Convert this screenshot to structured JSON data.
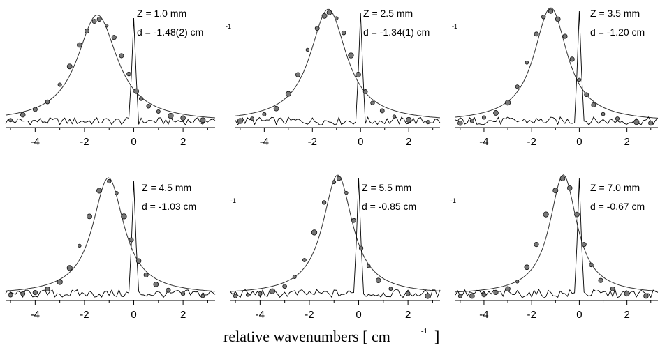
{
  "figure": {
    "xlabel": "relative wavenumbers [ cm",
    "xlabel_exponent": "-1",
    "xlabel_close": "]"
  },
  "chart_data": [
    {
      "type": "scatter",
      "z_label": "Z = 1.0 mm",
      "d_label": "d = -1.48(2) cm",
      "d_exponent": "-1",
      "peak": -1.48,
      "width": 1.05,
      "xlim": [
        -5.2,
        3.3
      ],
      "xticks": [
        -4,
        -2,
        0,
        2
      ],
      "series": [
        {
          "values": [
            [
              -5.0,
              0.05
            ],
            [
              -4.5,
              0.1
            ],
            [
              -4.0,
              0.15
            ],
            [
              -3.5,
              0.22
            ],
            [
              -3.0,
              0.38
            ],
            [
              -2.6,
              0.55
            ],
            [
              -2.2,
              0.75
            ],
            [
              -1.9,
              0.88
            ],
            [
              -1.6,
              0.97
            ],
            [
              -1.4,
              0.99
            ],
            [
              -1.1,
              0.93
            ],
            [
              -0.8,
              0.82
            ],
            [
              -0.5,
              0.65
            ],
            [
              -0.2,
              0.48
            ],
            [
              0.1,
              0.32
            ],
            [
              0.3,
              0.25
            ],
            [
              0.6,
              0.18
            ],
            [
              1.0,
              0.13
            ],
            [
              1.5,
              0.09
            ],
            [
              2.0,
              0.07
            ],
            [
              2.8,
              0.05
            ]
          ]
        }
      ]
    },
    {
      "type": "scatter",
      "z_label": "Z = 2.5 mm",
      "d_label": "d = -1.34(1) cm",
      "d_exponent": "-1",
      "peak": -1.34,
      "width": 0.98,
      "xlim": [
        -5.2,
        3.3
      ],
      "xticks": [
        -4,
        -2,
        0,
        2
      ],
      "series": [
        {
          "values": [
            [
              -5.0,
              0.04
            ],
            [
              -4.5,
              0.06
            ],
            [
              -4.0,
              0.1
            ],
            [
              -3.5,
              0.15
            ],
            [
              -3.0,
              0.28
            ],
            [
              -2.6,
              0.45
            ],
            [
              -2.2,
              0.67
            ],
            [
              -1.8,
              0.86
            ],
            [
              -1.5,
              0.97
            ],
            [
              -1.3,
              1.0
            ],
            [
              -1.0,
              0.95
            ],
            [
              -0.7,
              0.82
            ],
            [
              -0.4,
              0.62
            ],
            [
              -0.1,
              0.45
            ],
            [
              0.2,
              0.3
            ],
            [
              0.5,
              0.2
            ],
            [
              0.9,
              0.13
            ],
            [
              1.4,
              0.08
            ],
            [
              2.0,
              0.05
            ],
            [
              2.8,
              0.03
            ]
          ]
        }
      ]
    },
    {
      "type": "scatter",
      "z_label": "Z = 3.5 mm",
      "d_label": "d = -1.20 cm",
      "d_exponent": "-1",
      "peak": -1.2,
      "width": 0.9,
      "xlim": [
        -5.2,
        3.3
      ],
      "xticks": [
        -4,
        -2,
        0,
        2
      ],
      "series": [
        {
          "values": [
            [
              -5.0,
              0.02
            ],
            [
              -4.5,
              0.04
            ],
            [
              -4.0,
              0.07
            ],
            [
              -3.5,
              0.11
            ],
            [
              -3.0,
              0.2
            ],
            [
              -2.6,
              0.34
            ],
            [
              -2.2,
              0.55
            ],
            [
              -1.8,
              0.8
            ],
            [
              -1.5,
              0.95
            ],
            [
              -1.2,
              1.0
            ],
            [
              -0.9,
              0.93
            ],
            [
              -0.6,
              0.78
            ],
            [
              -0.3,
              0.58
            ],
            [
              0.0,
              0.4
            ],
            [
              0.3,
              0.27
            ],
            [
              0.6,
              0.18
            ],
            [
              1.0,
              0.1
            ],
            [
              1.6,
              0.06
            ],
            [
              2.4,
              0.03
            ],
            [
              3.0,
              0.02
            ]
          ]
        }
      ]
    },
    {
      "type": "scatter",
      "z_label": "Z = 4.5 mm",
      "d_label": "d = -1.03 cm",
      "d_exponent": "-1",
      "peak": -1.03,
      "width": 0.82,
      "xlim": [
        -5.2,
        3.3
      ],
      "xticks": [
        -4,
        -2,
        0,
        2
      ],
      "series": [
        {
          "values": [
            [
              -5.0,
              0.03
            ],
            [
              -4.5,
              0.04
            ],
            [
              -4.0,
              0.05
            ],
            [
              -3.5,
              0.08
            ],
            [
              -3.0,
              0.14
            ],
            [
              -2.6,
              0.26
            ],
            [
              -2.2,
              0.45
            ],
            [
              -1.8,
              0.7
            ],
            [
              -1.4,
              0.92
            ],
            [
              -1.0,
              1.0
            ],
            [
              -0.7,
              0.9
            ],
            [
              -0.4,
              0.7
            ],
            [
              -0.1,
              0.5
            ],
            [
              0.2,
              0.32
            ],
            [
              0.5,
              0.2
            ],
            [
              0.9,
              0.12
            ],
            [
              1.4,
              0.07
            ],
            [
              2.0,
              0.04
            ],
            [
              2.8,
              0.02
            ]
          ]
        }
      ]
    },
    {
      "type": "scatter",
      "z_label": "Z = 5.5 mm",
      "d_label": "d = -0.85 cm",
      "d_exponent": "-1",
      "peak": -0.85,
      "width": 0.78,
      "xlim": [
        -5.2,
        3.3
      ],
      "xticks": [
        -4,
        -2,
        0,
        2
      ],
      "series": [
        {
          "values": [
            [
              -5.0,
              0.02
            ],
            [
              -4.5,
              0.03
            ],
            [
              -4.0,
              0.04
            ],
            [
              -3.5,
              0.06
            ],
            [
              -3.0,
              0.1
            ],
            [
              -2.6,
              0.18
            ],
            [
              -2.2,
              0.32
            ],
            [
              -1.8,
              0.55
            ],
            [
              -1.4,
              0.8
            ],
            [
              -1.0,
              0.97
            ],
            [
              -0.8,
              1.0
            ],
            [
              -0.5,
              0.88
            ],
            [
              -0.2,
              0.65
            ],
            [
              0.1,
              0.42
            ],
            [
              0.4,
              0.27
            ],
            [
              0.8,
              0.15
            ],
            [
              1.3,
              0.08
            ],
            [
              2.0,
              0.04
            ],
            [
              2.8,
              0.02
            ]
          ]
        }
      ]
    },
    {
      "type": "scatter",
      "z_label": "Z = 7.0 mm",
      "d_label": "d = -0.67 cm",
      "d_exponent": "-1",
      "peak": -0.67,
      "width": 0.74,
      "xlim": [
        -5.2,
        3.3
      ],
      "xticks": [
        -4,
        -2,
        0,
        2
      ],
      "series": [
        {
          "values": [
            [
              -5.0,
              0.02
            ],
            [
              -4.5,
              0.02
            ],
            [
              -4.0,
              0.03
            ],
            [
              -3.5,
              0.05
            ],
            [
              -3.0,
              0.08
            ],
            [
              -2.6,
              0.14
            ],
            [
              -2.2,
              0.26
            ],
            [
              -1.8,
              0.45
            ],
            [
              -1.4,
              0.7
            ],
            [
              -1.0,
              0.9
            ],
            [
              -0.7,
              1.0
            ],
            [
              -0.4,
              0.92
            ],
            [
              -0.1,
              0.7
            ],
            [
              0.2,
              0.45
            ],
            [
              0.5,
              0.28
            ],
            [
              0.9,
              0.15
            ],
            [
              1.4,
              0.08
            ],
            [
              2.0,
              0.04
            ],
            [
              2.8,
              0.02
            ]
          ]
        }
      ]
    }
  ]
}
